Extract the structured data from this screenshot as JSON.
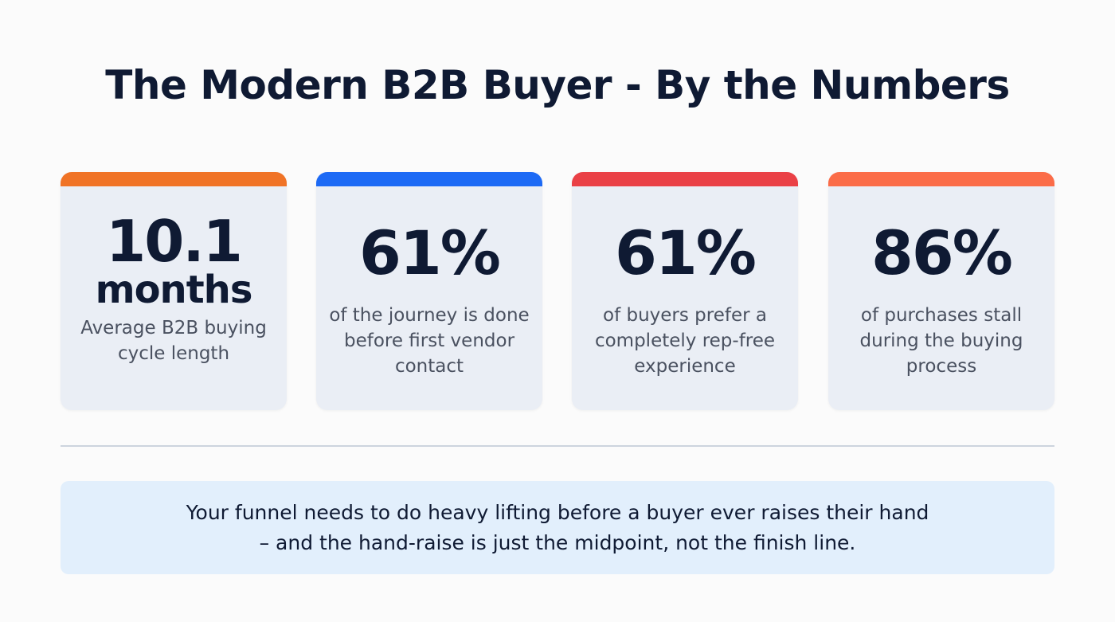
{
  "title": "The Modern B2B Buyer - By the Numbers",
  "cards": [
    {
      "stat": "10.1",
      "unit": "months",
      "description": "Average B2B buying cycle length",
      "accent": "#f07326"
    },
    {
      "stat": "61%",
      "description": "of the journey is done before first vendor contact",
      "accent": "#1d6af5"
    },
    {
      "stat": "61%",
      "description": "of buyers prefer a completely rep-free experience",
      "accent": "#ea4046"
    },
    {
      "stat": "86%",
      "description": "of purchases stall during the buying process",
      "accent": "#fb6c48"
    }
  ],
  "banner": {
    "line1": "Your funnel needs to do heavy lifting before a buyer ever raises their hand",
    "line2": "– and the hand-raise is just the midpoint, not the finish line."
  }
}
